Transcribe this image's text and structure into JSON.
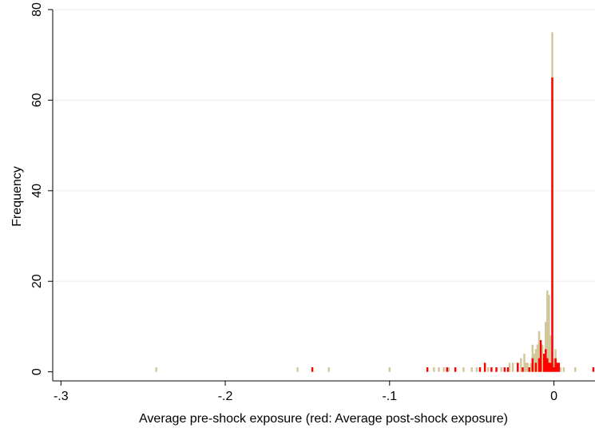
{
  "chart_data": {
    "type": "bar",
    "title": "",
    "xlabel": "Average pre-shock exposure (red: Average post-shock exposure)",
    "ylabel": "Frequency",
    "xlim": [
      -0.305,
      0.025
    ],
    "ylim": [
      -2,
      80
    ],
    "xticks": [
      -0.3,
      -0.2,
      -0.1,
      0
    ],
    "xtick_labels": [
      "-.3",
      "-.2",
      "-.1",
      "0"
    ],
    "yticks": [
      0,
      20,
      40,
      60,
      80
    ],
    "ytick_labels": [
      "0",
      "20",
      "40",
      "60",
      "80"
    ],
    "grid": "horizontal",
    "legend": "none",
    "series": [
      {
        "color": "#d2c79a",
        "bin_width": 0.0012,
        "x": [
          -0.242,
          -0.156,
          -0.137,
          -0.1,
          -0.073,
          -0.07,
          -0.067,
          -0.064,
          -0.055,
          -0.05,
          -0.047,
          -0.04,
          -0.032,
          -0.027,
          -0.025,
          -0.022,
          -0.02,
          -0.018,
          -0.017,
          -0.016,
          -0.014,
          -0.013,
          -0.012,
          -0.011,
          -0.01,
          -0.009,
          -0.008,
          -0.007,
          -0.006,
          -0.005,
          -0.004,
          -0.003,
          -0.002,
          -0.001,
          0.0,
          0.001,
          0.002,
          0.004,
          0.006,
          0.013
        ],
        "values": [
          1,
          1,
          1,
          1,
          1,
          1,
          1,
          1,
          1,
          1,
          1,
          1,
          1,
          2,
          2,
          1,
          3,
          4,
          2,
          2,
          2,
          6,
          4,
          5,
          6,
          9,
          5,
          6,
          3,
          11,
          18,
          17,
          8,
          75,
          3,
          5,
          2,
          1,
          1,
          1
        ]
      },
      {
        "color": "#ff0000",
        "bin_width": 0.0012,
        "x": [
          -0.147,
          -0.077,
          -0.065,
          -0.06,
          -0.045,
          -0.042,
          -0.038,
          -0.035,
          -0.03,
          -0.028,
          -0.022,
          -0.019,
          -0.015,
          -0.013,
          -0.011,
          -0.009,
          -0.008,
          -0.006,
          -0.005,
          -0.004,
          -0.003,
          -0.002,
          -0.001,
          0.0,
          0.001,
          0.002,
          0.003,
          0.024
        ],
        "values": [
          1,
          1,
          1,
          1,
          1,
          2,
          1,
          1,
          1,
          1,
          2,
          1,
          1,
          3,
          2,
          3,
          7,
          4,
          5,
          3,
          2,
          2,
          65,
          1,
          3,
          2,
          2,
          1
        ]
      }
    ]
  }
}
